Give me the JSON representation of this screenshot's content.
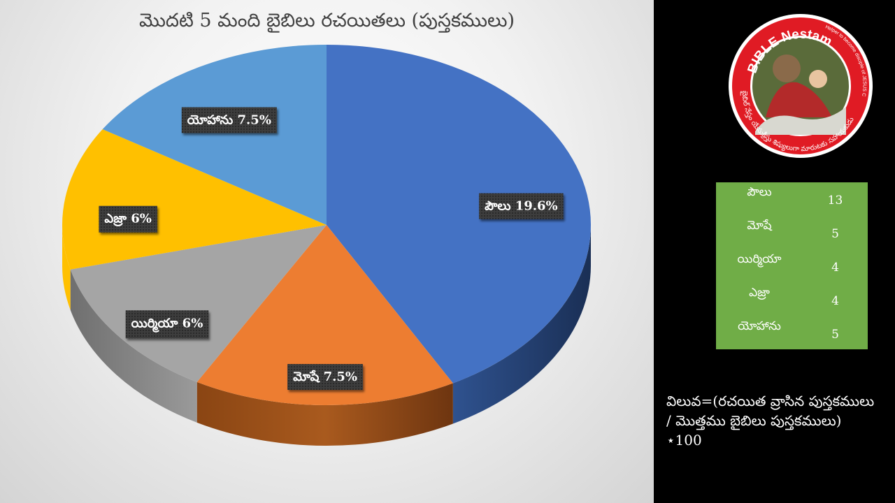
{
  "chart_data": {
    "type": "pie",
    "title": "మొదటి 5 మంది బైబిలు రచయితలు (పుస్తకములు)",
    "style": "3d-pie",
    "slices": [
      {
        "name": "పౌలు",
        "value": 19.6,
        "label": "పౌలు 19.6%",
        "color": "#4472c4"
      },
      {
        "name": "మోషే",
        "value": 7.5,
        "label": "మోషే 7.5%",
        "color": "#ed7d31"
      },
      {
        "name": "యిర్మియా",
        "value": 6,
        "label": "యిర్మియా 6%",
        "color": "#a5a5a5"
      },
      {
        "name": "ఎజ్రా",
        "value": 6,
        "label": "ఎజ్రా 6%",
        "color": "#ffc000"
      },
      {
        "name": "యోహాను",
        "value": 7.5,
        "label": "యోహాను 7.5%",
        "color": "#5b9bd5"
      }
    ]
  },
  "table": {
    "rows": [
      {
        "name": "పౌలు",
        "value": "13"
      },
      {
        "name": "మోషే",
        "value": "5"
      },
      {
        "name": "యిర్మియా",
        "value": "4"
      },
      {
        "name": "ఎజ్రా",
        "value": "4"
      },
      {
        "name": "యోహాను",
        "value": "5"
      }
    ]
  },
  "logo": {
    "brand": "BIBLE Nestam",
    "tagline": "Helper to become disciple of JESUS CHRIST",
    "telugu": "బైబిల్ నేస్తం యేసుక్రీస్తు శిష్యులుగా మారుటకు సహాయకుడు",
    "ring_color": "#e01b24"
  },
  "formula": {
    "line1": "విలువ=(రచయిత వ్రాసిన పుస్తకములు",
    "line2": "/ మొత్తము బైబిలు పుస్తకములు)",
    "line3": "⋆100"
  }
}
